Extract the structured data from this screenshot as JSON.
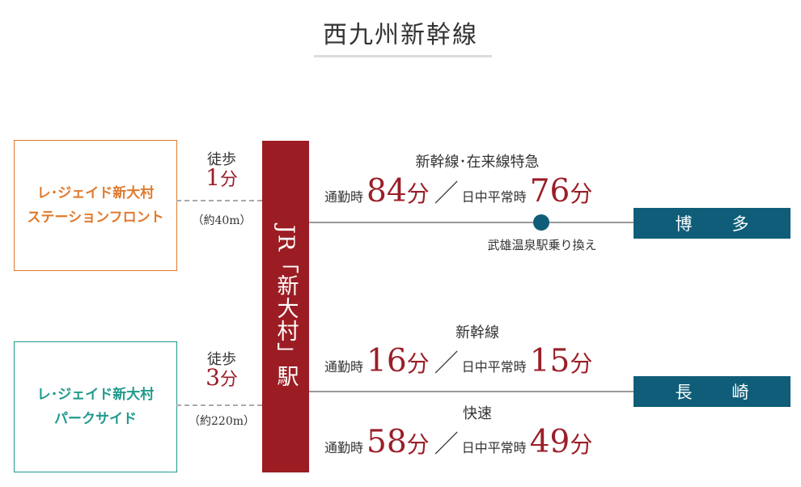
{
  "title": "西九州新幹線",
  "properties": [
    {
      "line1": "レ･ジェイド新大村",
      "line2": "ステーションフロント",
      "color": "#e07a2d"
    },
    {
      "line1": "レ･ジェイド新大村",
      "line2": "パークサイド",
      "color": "#1f9a8c"
    }
  ],
  "walks": [
    {
      "label": "徒歩",
      "minutes": "1",
      "unit": "分",
      "distance": "（約40m）"
    },
    {
      "label": "徒歩",
      "minutes": "3",
      "unit": "分",
      "distance": "（約220m）"
    }
  ],
  "station": {
    "name": "JR「新大村」駅",
    "color": "#9b1d23"
  },
  "routes": [
    {
      "destination": "博　多",
      "transfer_note": "武雄温泉駅乗り換え",
      "services": [
        {
          "name": "新幹線･在来線特急",
          "commute_label": "通勤時",
          "commute_time": "84",
          "daytime_label": "日中平常時",
          "daytime_time": "76",
          "unit": "分"
        }
      ]
    },
    {
      "destination": "長　崎",
      "services": [
        {
          "name": "新幹線",
          "commute_label": "通勤時",
          "commute_time": "16",
          "daytime_label": "日中平常時",
          "daytime_time": "15",
          "unit": "分"
        },
        {
          "name": "快速",
          "commute_label": "通勤時",
          "commute_time": "58",
          "daytime_label": "日中平常時",
          "daytime_time": "49",
          "unit": "分"
        }
      ]
    }
  ],
  "separator": "／",
  "colors": {
    "accent_red": "#9a1f28",
    "destination_blue": "#0f5d78",
    "orange": "#e07a2d",
    "teal": "#1f9a8c"
  }
}
